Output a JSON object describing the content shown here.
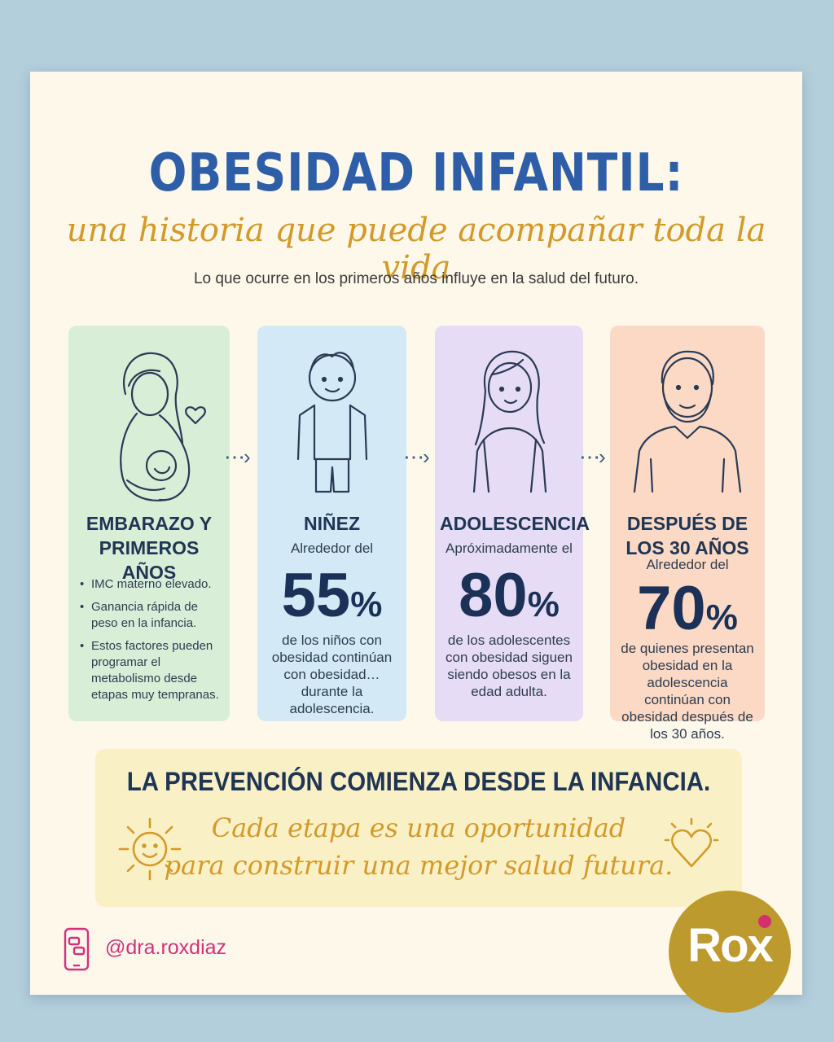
{
  "title": "OBESIDAD INFANTIL:",
  "subtitle": "una historia que puede acompañar toda la vida",
  "lead": "Lo que ocurre en los primeros años influye en la salud del futuro.",
  "stages": [
    {
      "title": "EMBARAZO Y PRIMEROS AÑOS",
      "bullets": [
        "IMC materno elevado.",
        "Ganancia rápida de peso en la infancia.",
        "Estos factores pueden programar el metabolismo desde etapas muy tempranas."
      ]
    },
    {
      "title": "NIÑEZ",
      "intro": "Alrededor del",
      "stat": "55",
      "pct": "%",
      "desc": "de los niños con obesidad continúan con obesidad… durante la adolescencia."
    },
    {
      "title": "ADOLESCENCIA",
      "intro": "Apróximadamente el",
      "stat": "80",
      "pct": "%",
      "desc": "de los adolescentes con obesidad siguen siendo obesos en la edad adulta."
    },
    {
      "title": "DESPUÉS DE LOS 30 AÑOS",
      "intro": "Alrededor del",
      "stat": "70",
      "pct": "%",
      "desc": "de quienes presentan obesidad en la adolescencia continúan con obesidad después de los 30 años."
    }
  ],
  "arrow": "⋯›",
  "banner": {
    "title": "LA PREVENCIÓN COMIENZA DESDE LA INFANCIA.",
    "line1": "Cada etapa es una oportunidad",
    "line2": "para construir una mejor salud futura."
  },
  "footer": {
    "handle": "@dra.roxdiaz",
    "logo": "Rox"
  },
  "colors": {
    "title": "#2f5ea8",
    "accent": "#d39a2a",
    "brand": "#bd9a2d",
    "handle": "#d4307b"
  },
  "icons": [
    "pregnant-woman-icon",
    "boy-icon",
    "teen-girl-icon",
    "adult-man-icon",
    "sun-icon",
    "heart-icon",
    "phone-chat-icon"
  ]
}
